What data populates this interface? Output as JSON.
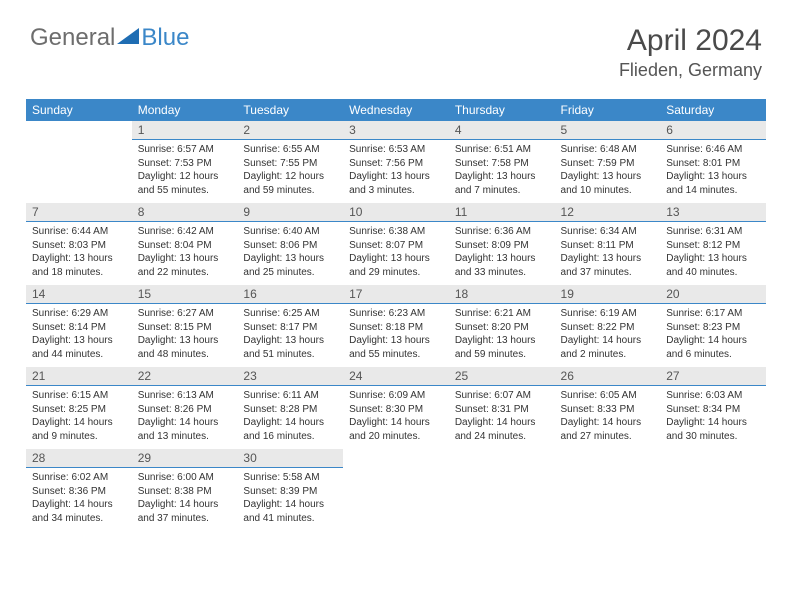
{
  "logo": {
    "text1": "General",
    "text2": "Blue",
    "triangle_color": "#1f6db3"
  },
  "title": "April 2024",
  "location": "Flieden, Germany",
  "colors": {
    "header_bg": "#3b87c8",
    "header_text": "#ffffff",
    "daynum_bg": "#e9e9e9",
    "daynum_border": "#3b87c8",
    "body_text": "#333333"
  },
  "day_headers": [
    "Sunday",
    "Monday",
    "Tuesday",
    "Wednesday",
    "Thursday",
    "Friday",
    "Saturday"
  ],
  "weeks": [
    [
      null,
      {
        "n": "1",
        "sr": "6:57 AM",
        "ss": "7:53 PM",
        "dl": "12 hours and 55 minutes."
      },
      {
        "n": "2",
        "sr": "6:55 AM",
        "ss": "7:55 PM",
        "dl": "12 hours and 59 minutes."
      },
      {
        "n": "3",
        "sr": "6:53 AM",
        "ss": "7:56 PM",
        "dl": "13 hours and 3 minutes."
      },
      {
        "n": "4",
        "sr": "6:51 AM",
        "ss": "7:58 PM",
        "dl": "13 hours and 7 minutes."
      },
      {
        "n": "5",
        "sr": "6:48 AM",
        "ss": "7:59 PM",
        "dl": "13 hours and 10 minutes."
      },
      {
        "n": "6",
        "sr": "6:46 AM",
        "ss": "8:01 PM",
        "dl": "13 hours and 14 minutes."
      }
    ],
    [
      {
        "n": "7",
        "sr": "6:44 AM",
        "ss": "8:03 PM",
        "dl": "13 hours and 18 minutes."
      },
      {
        "n": "8",
        "sr": "6:42 AM",
        "ss": "8:04 PM",
        "dl": "13 hours and 22 minutes."
      },
      {
        "n": "9",
        "sr": "6:40 AM",
        "ss": "8:06 PM",
        "dl": "13 hours and 25 minutes."
      },
      {
        "n": "10",
        "sr": "6:38 AM",
        "ss": "8:07 PM",
        "dl": "13 hours and 29 minutes."
      },
      {
        "n": "11",
        "sr": "6:36 AM",
        "ss": "8:09 PM",
        "dl": "13 hours and 33 minutes."
      },
      {
        "n": "12",
        "sr": "6:34 AM",
        "ss": "8:11 PM",
        "dl": "13 hours and 37 minutes."
      },
      {
        "n": "13",
        "sr": "6:31 AM",
        "ss": "8:12 PM",
        "dl": "13 hours and 40 minutes."
      }
    ],
    [
      {
        "n": "14",
        "sr": "6:29 AM",
        "ss": "8:14 PM",
        "dl": "13 hours and 44 minutes."
      },
      {
        "n": "15",
        "sr": "6:27 AM",
        "ss": "8:15 PM",
        "dl": "13 hours and 48 minutes."
      },
      {
        "n": "16",
        "sr": "6:25 AM",
        "ss": "8:17 PM",
        "dl": "13 hours and 51 minutes."
      },
      {
        "n": "17",
        "sr": "6:23 AM",
        "ss": "8:18 PM",
        "dl": "13 hours and 55 minutes."
      },
      {
        "n": "18",
        "sr": "6:21 AM",
        "ss": "8:20 PM",
        "dl": "13 hours and 59 minutes."
      },
      {
        "n": "19",
        "sr": "6:19 AM",
        "ss": "8:22 PM",
        "dl": "14 hours and 2 minutes."
      },
      {
        "n": "20",
        "sr": "6:17 AM",
        "ss": "8:23 PM",
        "dl": "14 hours and 6 minutes."
      }
    ],
    [
      {
        "n": "21",
        "sr": "6:15 AM",
        "ss": "8:25 PM",
        "dl": "14 hours and 9 minutes."
      },
      {
        "n": "22",
        "sr": "6:13 AM",
        "ss": "8:26 PM",
        "dl": "14 hours and 13 minutes."
      },
      {
        "n": "23",
        "sr": "6:11 AM",
        "ss": "8:28 PM",
        "dl": "14 hours and 16 minutes."
      },
      {
        "n": "24",
        "sr": "6:09 AM",
        "ss": "8:30 PM",
        "dl": "14 hours and 20 minutes."
      },
      {
        "n": "25",
        "sr": "6:07 AM",
        "ss": "8:31 PM",
        "dl": "14 hours and 24 minutes."
      },
      {
        "n": "26",
        "sr": "6:05 AM",
        "ss": "8:33 PM",
        "dl": "14 hours and 27 minutes."
      },
      {
        "n": "27",
        "sr": "6:03 AM",
        "ss": "8:34 PM",
        "dl": "14 hours and 30 minutes."
      }
    ],
    [
      {
        "n": "28",
        "sr": "6:02 AM",
        "ss": "8:36 PM",
        "dl": "14 hours and 34 minutes."
      },
      {
        "n": "29",
        "sr": "6:00 AM",
        "ss": "8:38 PM",
        "dl": "14 hours and 37 minutes."
      },
      {
        "n": "30",
        "sr": "5:58 AM",
        "ss": "8:39 PM",
        "dl": "14 hours and 41 minutes."
      },
      null,
      null,
      null,
      null
    ]
  ],
  "labels": {
    "sunrise": "Sunrise:",
    "sunset": "Sunset:",
    "daylight": "Daylight:"
  }
}
